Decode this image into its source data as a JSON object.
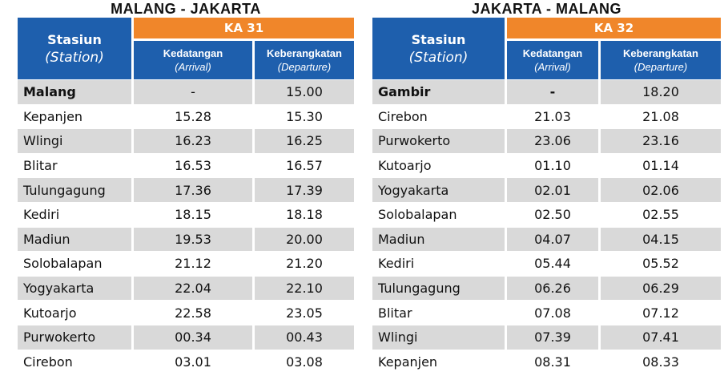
{
  "tables": [
    {
      "route_title": "MALANG - JAKARTA",
      "station_header": "Stasiun",
      "station_header_en": "(Station)",
      "train_label": "KA 31",
      "arrival_header": "Kedatangan",
      "arrival_header_en": "(Arrival)",
      "departure_header": "Keberangkatan",
      "departure_header_en": "(Departure)",
      "rows": [
        {
          "station": "Malang",
          "arrival": "-",
          "departure": "15.00"
        },
        {
          "station": "Kepanjen",
          "arrival": "15.28",
          "departure": "15.30"
        },
        {
          "station": "Wlingi",
          "arrival": "16.23",
          "departure": "16.25"
        },
        {
          "station": "Blitar",
          "arrival": "16.53",
          "departure": "16.57"
        },
        {
          "station": "Tulungagung",
          "arrival": "17.36",
          "departure": "17.39"
        },
        {
          "station": "Kediri",
          "arrival": "18.15",
          "departure": "18.18"
        },
        {
          "station": "Madiun",
          "arrival": "19.53",
          "departure": "20.00"
        },
        {
          "station": "Solobalapan",
          "arrival": "21.12",
          "departure": "21.20"
        },
        {
          "station": "Yogyakarta",
          "arrival": "22.04",
          "departure": "22.10"
        },
        {
          "station": "Kutoarjo",
          "arrival": "22.58",
          "departure": "23.05"
        },
        {
          "station": "Purwokerto",
          "arrival": "00.34",
          "departure": "00.43"
        },
        {
          "station": "Cirebon",
          "arrival": "03.01",
          "departure": "03.08"
        }
      ]
    },
    {
      "route_title": "JAKARTA - MALANG",
      "station_header": "Stasiun",
      "station_header_en": "(Station)",
      "train_label": "KA 32",
      "arrival_header": "Kedatangan",
      "arrival_header_en": "(Arrival)",
      "departure_header": "Keberangkatan",
      "departure_header_en": "(Departure)",
      "rows": [
        {
          "station": "Gambir",
          "arrival": "-",
          "departure": "18.20"
        },
        {
          "station": "Cirebon",
          "arrival": "21.03",
          "departure": "21.08"
        },
        {
          "station": "Purwokerto",
          "arrival": "23.06",
          "departure": "23.16"
        },
        {
          "station": "Kutoarjo",
          "arrival": "01.10",
          "departure": "01.14"
        },
        {
          "station": "Yogyakarta",
          "arrival": "02.01",
          "departure": "02.06"
        },
        {
          "station": "Solobalapan",
          "arrival": "02.50",
          "departure": "02.55"
        },
        {
          "station": "Madiun",
          "arrival": "04.07",
          "departure": "04.15"
        },
        {
          "station": "Kediri",
          "arrival": "05.44",
          "departure": "05.52"
        },
        {
          "station": "Tulungagung",
          "arrival": "06.26",
          "departure": "06.29"
        },
        {
          "station": "Blitar",
          "arrival": "07.08",
          "departure": "07.12"
        },
        {
          "station": "Wlingi",
          "arrival": "07.39",
          "departure": "07.41"
        },
        {
          "station": "Kepanjen",
          "arrival": "08.31",
          "departure": "08.33"
        }
      ]
    }
  ],
  "colors": {
    "header_blue": "#1e5fad",
    "train_orange": "#f0862a",
    "row_shade": "#d9d9d9"
  }
}
